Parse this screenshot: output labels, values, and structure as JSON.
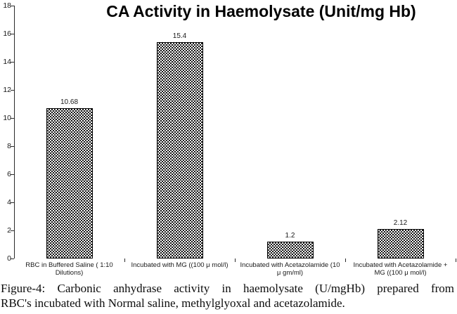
{
  "figure": {
    "caption": {
      "line1": "Figure-4: Carbonic anhydrase activity in haemolysate (U/mgHb) prepared from",
      "line2": "RBC's incubated with Normal saline, methylglyoxal and acetazolamide."
    }
  },
  "chart_data": {
    "type": "bar",
    "title": "CA Activity in Haemolysate (Unit/mg Hb)",
    "categories": [
      "RBC in Buffered Saline ( 1:10 Dilutions)",
      "Incubated with MG ((100 μ mol/l)",
      "Incubated with Acetazolamide (10 μ gm/ml)",
      "Incubated with Acetazolamide + MG ((100 μ mol/l)"
    ],
    "category_label_lines": [
      [
        "RBC in Buffered Saline ( 1:10",
        "Dilutions)"
      ],
      [
        "Incubated with MG ((100 μ mol/l)"
      ],
      [
        "Incubated with Acetazolamide (10",
        "μ gm/ml)"
      ],
      [
        "Incubated with Acetazolamide +",
        "MG ((100 μ mol/l)"
      ]
    ],
    "values": [
      10.68,
      15.4,
      1.2,
      2.12
    ],
    "value_labels": [
      "10.68",
      "15.4",
      "1.2",
      "2.12"
    ],
    "xlabel": "",
    "ylabel": "",
    "ylim": [
      0,
      18
    ],
    "yticks": [
      0,
      2,
      4,
      6,
      8,
      10,
      12,
      14,
      16,
      18
    ],
    "grid": false,
    "legend": "none",
    "bar_fill": "black-white-checkerboard",
    "bar_border_color": "#000000",
    "axis_color": "#2b2b2b",
    "text_color": "#1a1a1a",
    "background": "#ffffff"
  }
}
